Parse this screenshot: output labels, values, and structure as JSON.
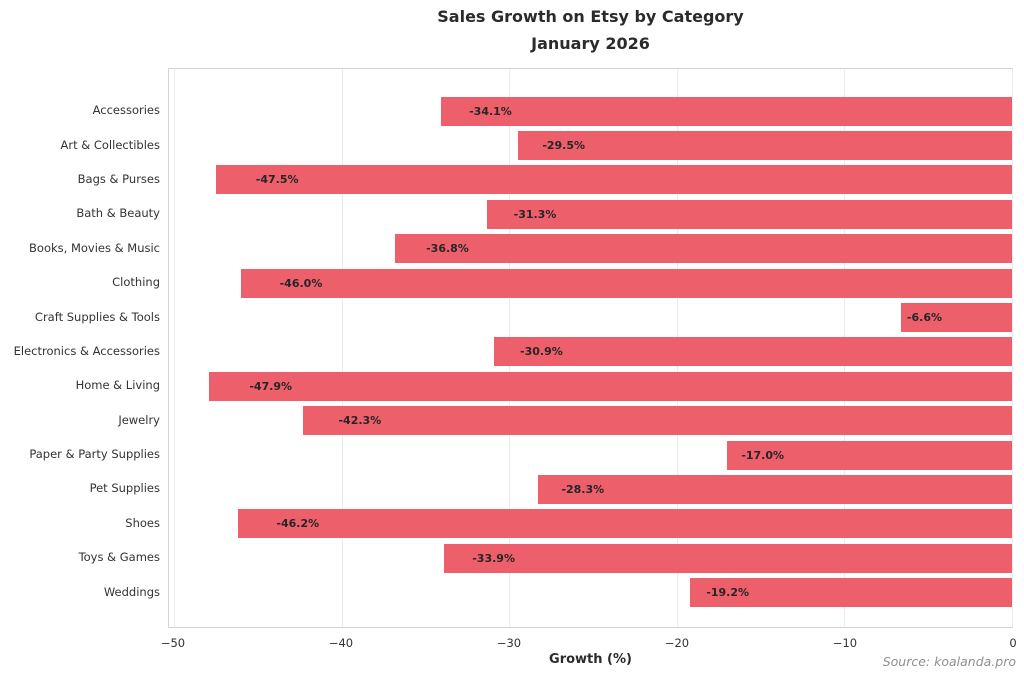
{
  "chart_data": {
    "type": "bar",
    "orientation": "horizontal",
    "title": "Sales Growth on Etsy by Category",
    "subtitle": "January 2026",
    "xlabel": "Growth (%)",
    "categories": [
      "Accessories",
      "Art & Collectibles",
      "Bags & Purses",
      "Bath & Beauty",
      "Books, Movies & Music",
      "Clothing",
      "Craft Supplies & Tools",
      "Electronics & Accessories",
      "Home & Living",
      "Jewelry",
      "Paper & Party Supplies",
      "Pet Supplies",
      "Shoes",
      "Toys & Games",
      "Weddings"
    ],
    "values": [
      -34.1,
      -29.5,
      -47.5,
      -31.3,
      -36.8,
      -46.0,
      -6.6,
      -30.9,
      -47.9,
      -42.3,
      -17.0,
      -28.3,
      -46.2,
      -33.9,
      -19.2
    ],
    "bar_labels": [
      "-34.1%",
      "-29.5%",
      "-47.5%",
      "-31.3%",
      "-36.8%",
      "-46.0%",
      "-6.6%",
      "-30.9%",
      "-47.9%",
      "-42.3%",
      "-17.0%",
      "-28.3%",
      "-46.2%",
      "-33.9%",
      "-19.2%"
    ],
    "xlim": [
      -50.3,
      0
    ],
    "xticks": [
      -50,
      -40,
      -30,
      -20,
      -10,
      0
    ],
    "xtick_labels": [
      "−50",
      "−40",
      "−30",
      "−20",
      "−10",
      "0"
    ],
    "grid": true,
    "legend": null,
    "bar_color": "#ec5f6b",
    "bar_label_color": "#262626",
    "grid_color": "#ebebeb",
    "spine_color": "#d4d4d4"
  },
  "source": "Source: koalanda.pro"
}
